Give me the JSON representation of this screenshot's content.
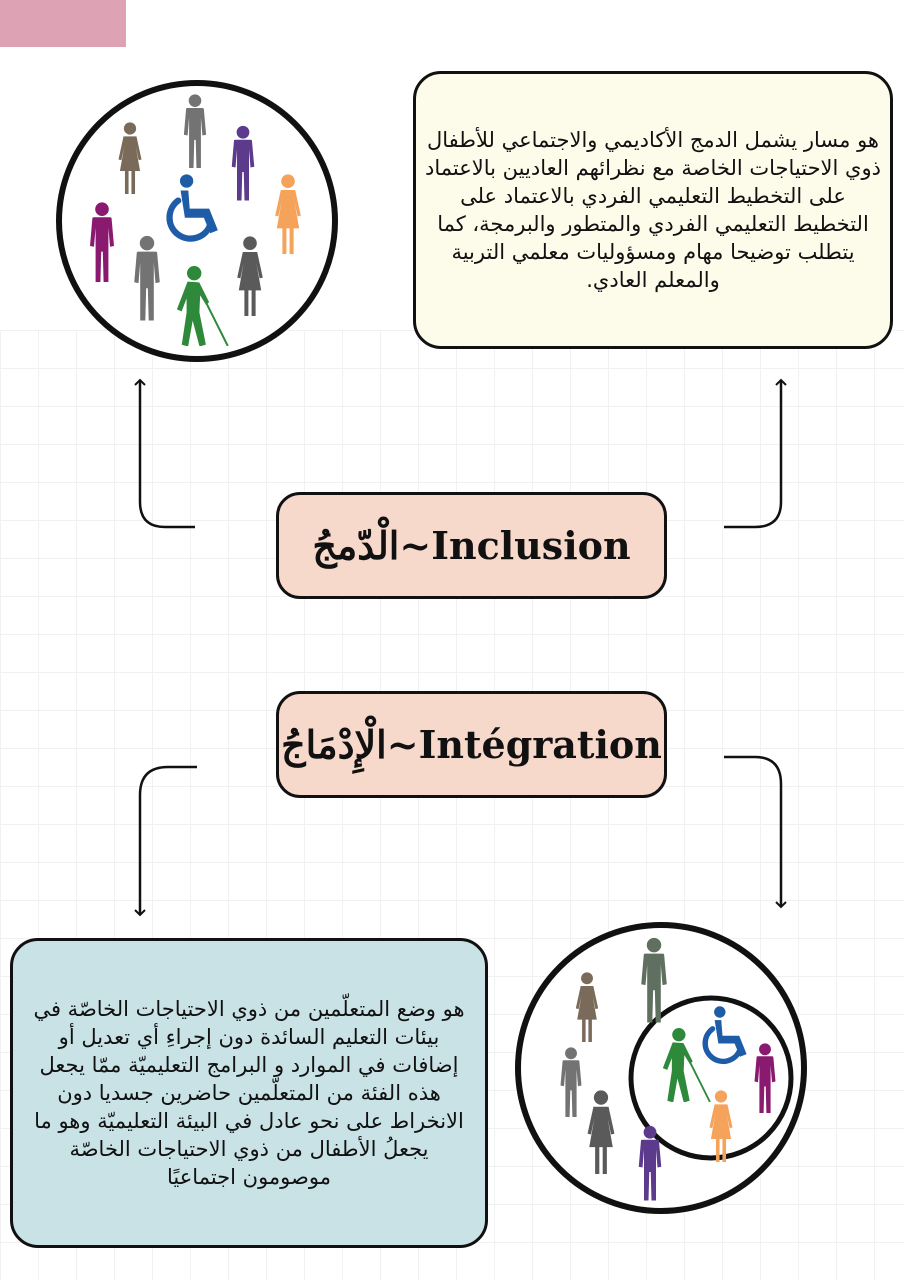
{
  "inclusion": {
    "term": "الْدّمجُ~Inclusion",
    "definition": "هو مسار يشمل الدمج الأكاديمي والاجتماعي للأطفال ذوي الاحتياجات الخاصة مع نظرائهم العاديين بالاعتماد على التخطيط التعليمي الفردي بالاعتماد على التخطيط التعليمي الفردي والمتطور والبرمجة، كما يتطلب توضيحا مهام ومسؤوليات معلمي التربية والمعلم العادي."
  },
  "integration": {
    "term": "الْإِدْمَاجُ~Intégration",
    "definition": "هو وضع المتعلّمين من ذوي الاحتياجات الخاصّة في بيئات التعليم السائدة دون إجراءِ أي تعديل أو إضافات في الموارد و البرامج التعليميّة ممّا يجعل هذه الفئة من المتعلّمين حاضرين جسديا دون الانخراط على نحو عادل في البيئة التعليميّة وهو ما يجعلُ الأطفال من ذوي الاحتياجات الخاصّة موصومون اجتماعيًا"
  },
  "icons": {
    "inclusion_circle": "people-circle-inclusion-icon",
    "integration_circle": "people-circle-integration-icon",
    "wheelchair": "wheelchair-icon",
    "blind_person": "blind-person-icon"
  },
  "colors": {
    "top_box_fill": "#fdfbea",
    "bottom_box_fill": "#c9e2e6",
    "term_box_fill": "#f7d9cc",
    "accent_tab": "#dda2b3",
    "grey": "#737373",
    "purple": "#5c3a8c",
    "magenta": "#8a1a6f",
    "orange": "#f5a25a",
    "green": "#2e8a3a",
    "blue": "#1f5ca8",
    "olive": "#5f7060",
    "taupe": "#7a6a5a"
  }
}
